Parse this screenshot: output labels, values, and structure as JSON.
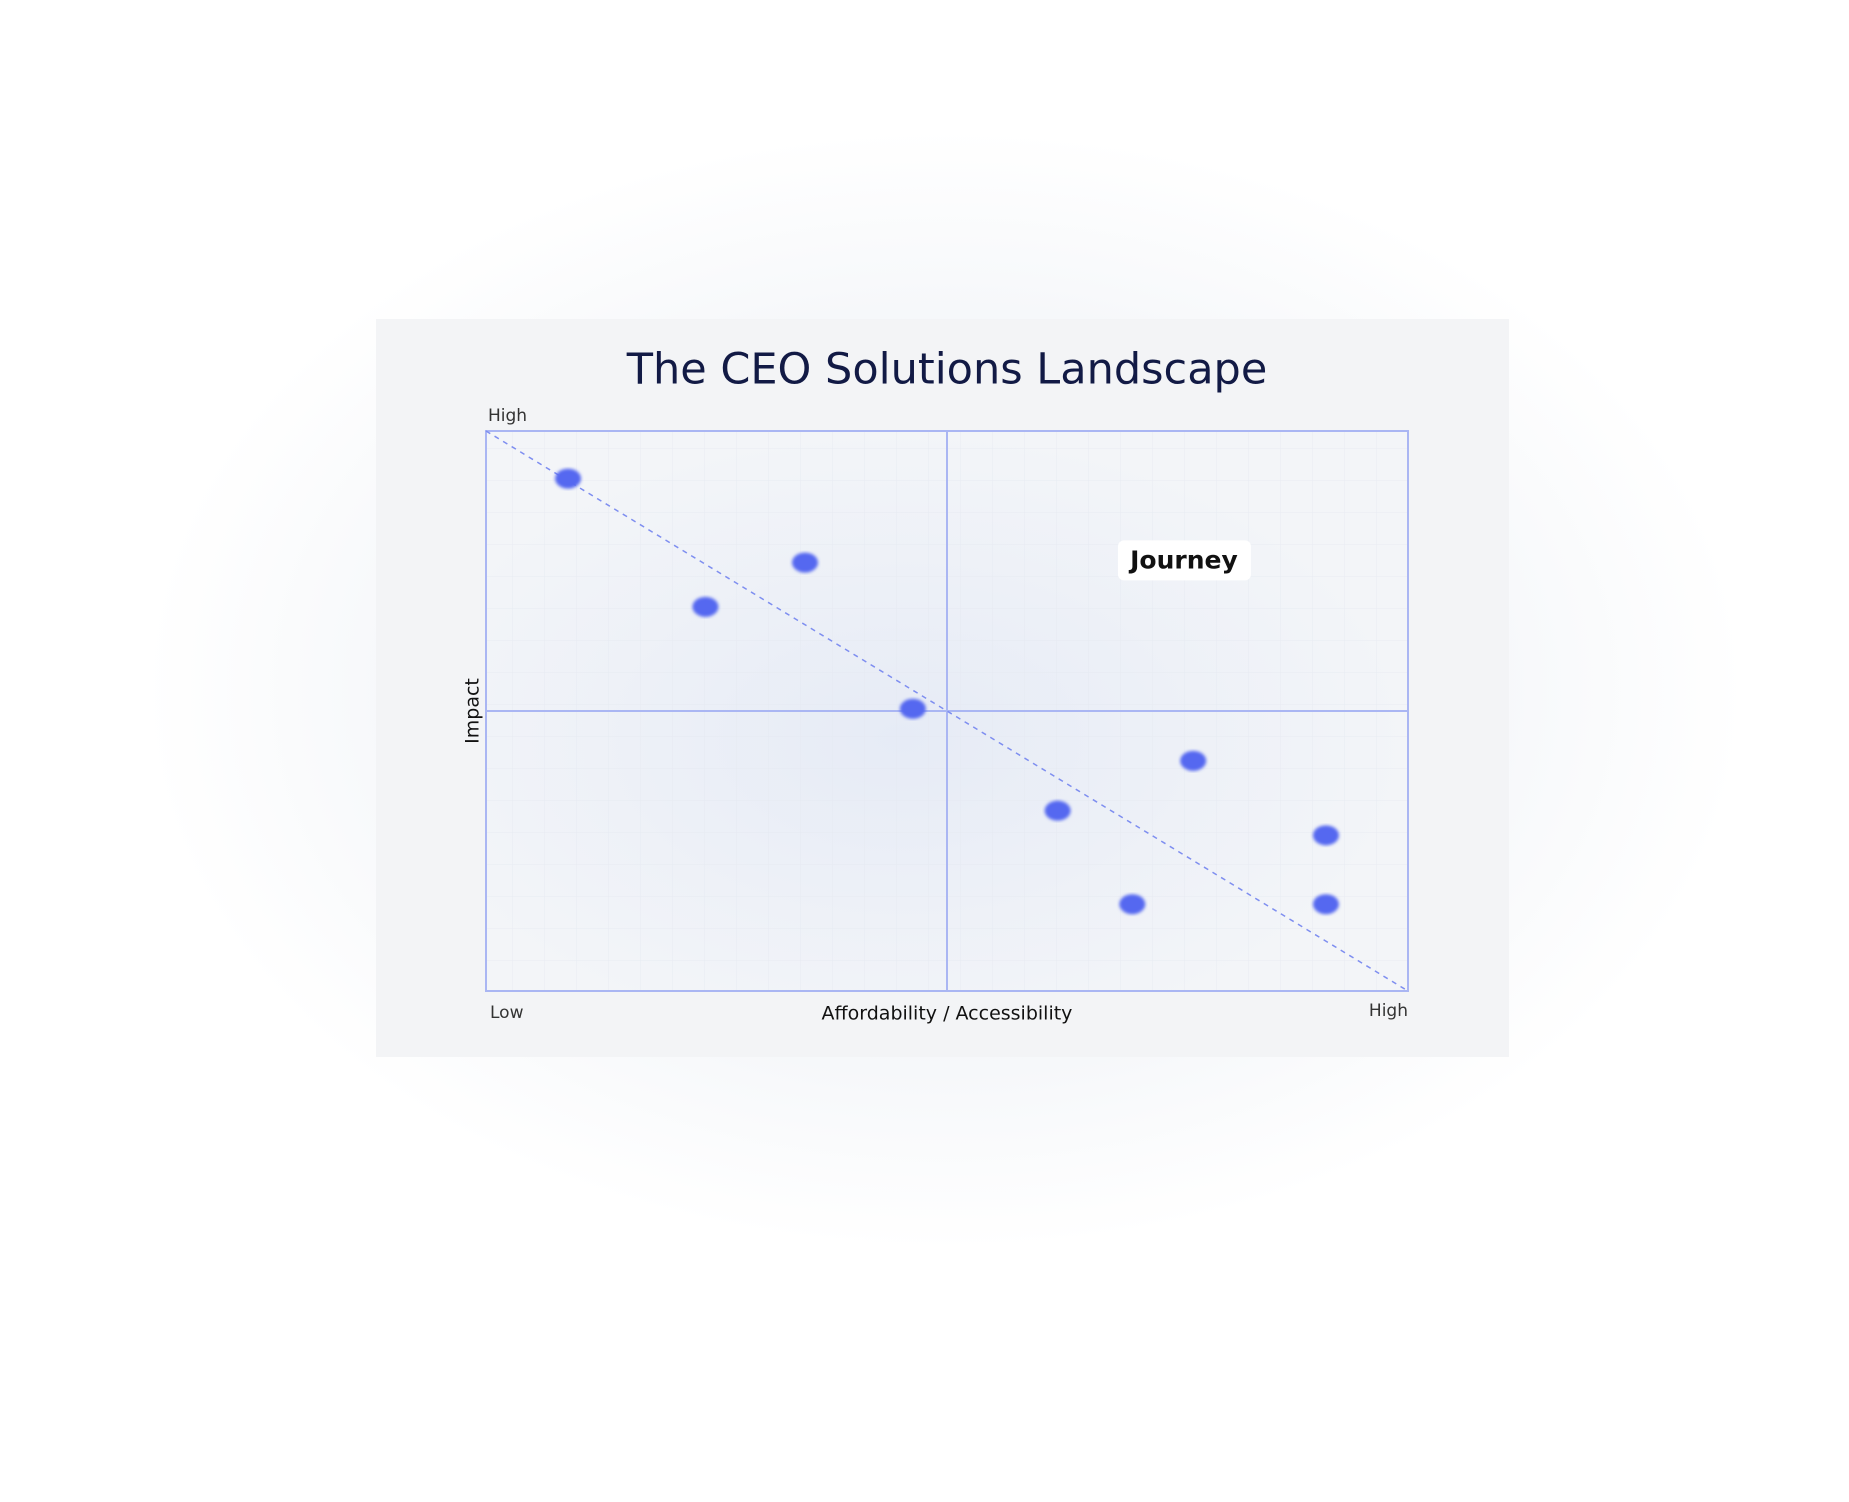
{
  "chart_data": {
    "type": "scatter",
    "title": "The CEO Solutions Landscape",
    "x_label": "Affordability / Accessibility",
    "y_label": "Impact",
    "x_low_label": "Low",
    "x_high_label": "High",
    "y_high_label": "High",
    "xlim": [
      0,
      10
    ],
    "ylim": [
      0,
      10
    ],
    "color": "#5468f0",
    "series": [
      {
        "x": [
          0.89,
          2.38,
          3.46,
          4.63,
          6.2,
          7.01,
          7.67,
          9.11,
          9.11
        ],
        "values": [
          9.15,
          6.86,
          7.65,
          5.04,
          3.22,
          1.55,
          4.11,
          2.78,
          1.55
        ]
      }
    ],
    "annotations": [
      {
        "text": "Journey",
        "x": 7.57,
        "y": 7.69
      }
    ]
  }
}
